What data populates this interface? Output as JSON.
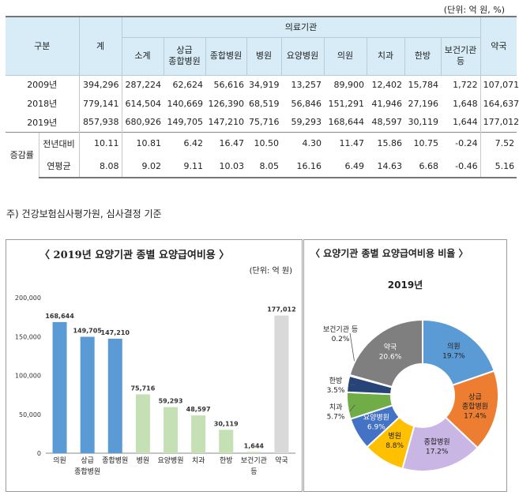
{
  "table": {
    "unit": "(단위: 억 원, %)",
    "group_label": "구분",
    "total_label": "계",
    "institutions_label": "의료기관",
    "columns": [
      "소계",
      "상급\n종합병원",
      "종합병원",
      "병원",
      "요양병원",
      "의원",
      "치과",
      "한방",
      "보건기관\n등"
    ],
    "pharmacy_label": "약국",
    "rows": [
      {
        "label": "2009년",
        "values": [
          "394,296",
          "287,224",
          "62,624",
          "56,616",
          "34,919",
          "13,257",
          "89,900",
          "12,402",
          "15,784",
          "1,722",
          "107,071"
        ]
      },
      {
        "label": "2018년",
        "values": [
          "779,141",
          "614,504",
          "140,669",
          "126,390",
          "68,519",
          "56,846",
          "151,291",
          "41,946",
          "27,196",
          "1,648",
          "164,637"
        ]
      },
      {
        "label": "2019년",
        "values": [
          "857,938",
          "680,926",
          "149,705",
          "147,210",
          "75,716",
          "59,293",
          "168,644",
          "48,597",
          "30,119",
          "1,644",
          "177,012"
        ]
      }
    ],
    "growth_label": "증감률",
    "growth_rows": [
      {
        "label": "전년대비",
        "values": [
          "10.11",
          "10.81",
          "6.42",
          "16.47",
          "10.50",
          "4.30",
          "11.47",
          "15.86",
          "10.75",
          "-0.24",
          "7.52"
        ]
      },
      {
        "label": "연평균",
        "values": [
          "8.08",
          "9.02",
          "9.11",
          "10.03",
          "8.05",
          "16.16",
          "6.49",
          "14.63",
          "6.68",
          "-0.46",
          "5.16"
        ]
      }
    ]
  },
  "note": "주) 건강보험심사평가원, 심사결정 기준",
  "chart_data": [
    {
      "type": "bar",
      "title": "〈 2019년 요양기관 종별 요양급여비용 〉",
      "unit": "(단위: 억 원)",
      "categories": [
        "의원",
        "상급\n종합병원",
        "종합병원",
        "병원",
        "요양병원",
        "치과",
        "한방",
        "보건기관\n등",
        "약국"
      ],
      "values": [
        168644,
        149705,
        147210,
        75716,
        59293,
        48597,
        30119,
        1644,
        177012
      ],
      "value_labels": [
        "168,644",
        "149,705",
        "147,210",
        "75,716",
        "59,293",
        "48,597",
        "30,119",
        "1,644",
        "177,012"
      ],
      "colors": [
        "#5b9bd5",
        "#5b9bd5",
        "#5b9bd5",
        "#c5e0b4",
        "#c5e0b4",
        "#c5e0b4",
        "#c5e0b4",
        "#c5e0b4",
        "#d9d9d9"
      ],
      "ylim": [
        0,
        200000
      ],
      "yticks": [
        "0",
        "50,000",
        "100,000",
        "150,000",
        "200,000"
      ],
      "grid": false
    },
    {
      "type": "pie",
      "title": "〈 요양기관 종별 요양급여비용 비율 〉",
      "subtitle": "2019년",
      "donut": true,
      "slices": [
        {
          "name": "의원",
          "value": 19.7,
          "color": "#5b9bd5"
        },
        {
          "name": "상급\n종합병원",
          "value": 17.4,
          "color": "#ed7d31"
        },
        {
          "name": "종합병원",
          "value": 17.2,
          "color": "#c9b6e4"
        },
        {
          "name": "병원",
          "value": 8.8,
          "color": "#ffc000"
        },
        {
          "name": "요양병원",
          "value": 6.9,
          "color": "#4472c4"
        },
        {
          "name": "치과",
          "value": 5.7,
          "color": "#70ad47"
        },
        {
          "name": "한방",
          "value": 3.5,
          "color": "#264478"
        },
        {
          "name": "보건기관 등",
          "value": 0.2,
          "color": "#a5a5a5"
        },
        {
          "name": "약국",
          "value": 20.6,
          "color": "#7f7f7f"
        }
      ],
      "pct_labels": [
        "19.7%",
        "17.4%",
        "17.2%",
        "8.8%",
        "6.9%",
        "5.7%",
        "3.5%",
        "0.2%",
        "20.6%"
      ]
    }
  ]
}
